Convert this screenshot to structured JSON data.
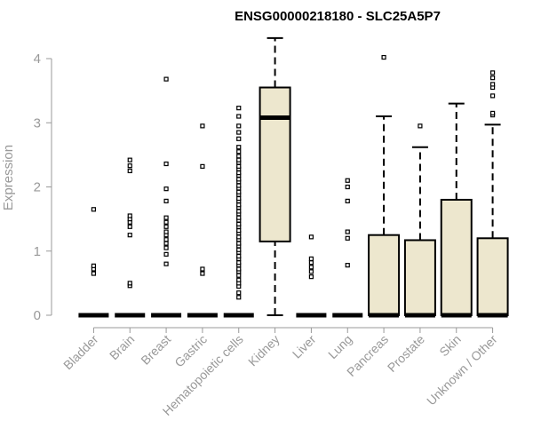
{
  "chart_data": {
    "type": "boxplot",
    "title": "ENSG00000218180 - SLC25A5P7",
    "xlabel": "",
    "ylabel": "Expression",
    "ylim": [
      0,
      4
    ],
    "yticks": [
      0,
      1,
      2,
      3,
      4
    ],
    "box_fill": "#EDE7CE",
    "box_stroke": "#000000",
    "axis_color": "#999999",
    "categories": [
      "Bladder",
      "Brain",
      "Breast",
      "Gastric",
      "Hematopoietic cells",
      "Kidney",
      "Liver",
      "Lung",
      "Pancreas",
      "Prostate",
      "Skin",
      "Unknown / Other"
    ],
    "boxes": [
      {
        "category": "Bladder",
        "min": 0,
        "q1": 0,
        "median": 0,
        "q3": 0,
        "max": 0,
        "outliers": [
          0.65,
          0.72,
          0.77,
          1.65
        ]
      },
      {
        "category": "Brain",
        "min": 0,
        "q1": 0,
        "median": 0,
        "q3": 0,
        "max": 0,
        "outliers": [
          0.46,
          0.5,
          1.25,
          1.38,
          1.45,
          1.5,
          1.55,
          2.25,
          2.33,
          2.42
        ]
      },
      {
        "category": "Breast",
        "min": 0,
        "q1": 0,
        "median": 0,
        "q3": 0,
        "max": 0,
        "outliers": [
          0.8,
          0.95,
          1.05,
          1.12,
          1.18,
          1.25,
          1.3,
          1.38,
          1.45,
          1.52,
          1.78,
          1.97,
          2.36,
          3.68
        ]
      },
      {
        "category": "Gastric",
        "min": 0,
        "q1": 0,
        "median": 0,
        "q3": 0,
        "max": 0,
        "outliers": [
          0.65,
          0.72,
          2.32,
          2.95
        ]
      },
      {
        "category": "Hematopoietic cells",
        "min": 0,
        "q1": 0,
        "median": 0,
        "q3": 0,
        "max": 0,
        "outliers": [
          0.28,
          0.35,
          0.45,
          0.5,
          0.55,
          0.62,
          0.68,
          0.72,
          0.78,
          0.82,
          0.88,
          0.92,
          0.98,
          1.02,
          1.08,
          1.12,
          1.18,
          1.22,
          1.28,
          1.32,
          1.38,
          1.42,
          1.48,
          1.52,
          1.58,
          1.62,
          1.68,
          1.72,
          1.78,
          1.82,
          1.88,
          1.92,
          1.98,
          2.02,
          2.08,
          2.12,
          2.18,
          2.22,
          2.28,
          2.32,
          2.38,
          2.42,
          2.48,
          2.55,
          2.62,
          2.75,
          2.85,
          2.95,
          3.1,
          3.23
        ]
      },
      {
        "category": "Kidney",
        "min": 0,
        "q1": 1.15,
        "median": 3.08,
        "q3": 3.55,
        "max": 4.32,
        "outliers": []
      },
      {
        "category": "Liver",
        "min": 0,
        "q1": 0,
        "median": 0,
        "q3": 0,
        "max": 0,
        "outliers": [
          0.6,
          0.68,
          0.75,
          0.82,
          0.88,
          1.22
        ]
      },
      {
        "category": "Lung",
        "min": 0,
        "q1": 0,
        "median": 0,
        "q3": 0,
        "max": 0,
        "outliers": [
          0.78,
          1.2,
          1.3,
          1.78,
          2.0,
          2.1
        ]
      },
      {
        "category": "Pancreas",
        "min": 0,
        "q1": 0,
        "median": 0,
        "q3": 1.25,
        "max": 3.1,
        "outliers": [
          4.02
        ]
      },
      {
        "category": "Prostate",
        "min": 0,
        "q1": 0,
        "median": 0,
        "q3": 1.17,
        "max": 2.62,
        "outliers": [
          2.95
        ]
      },
      {
        "category": "Skin",
        "min": 0,
        "q1": 0,
        "median": 0,
        "q3": 1.8,
        "max": 3.3,
        "outliers": []
      },
      {
        "category": "Unknown / Other",
        "min": 0,
        "q1": 0,
        "median": 0,
        "q3": 1.2,
        "max": 2.97,
        "outliers": [
          3.12,
          3.15,
          3.42,
          3.55,
          3.6,
          3.7,
          3.78
        ]
      }
    ]
  }
}
